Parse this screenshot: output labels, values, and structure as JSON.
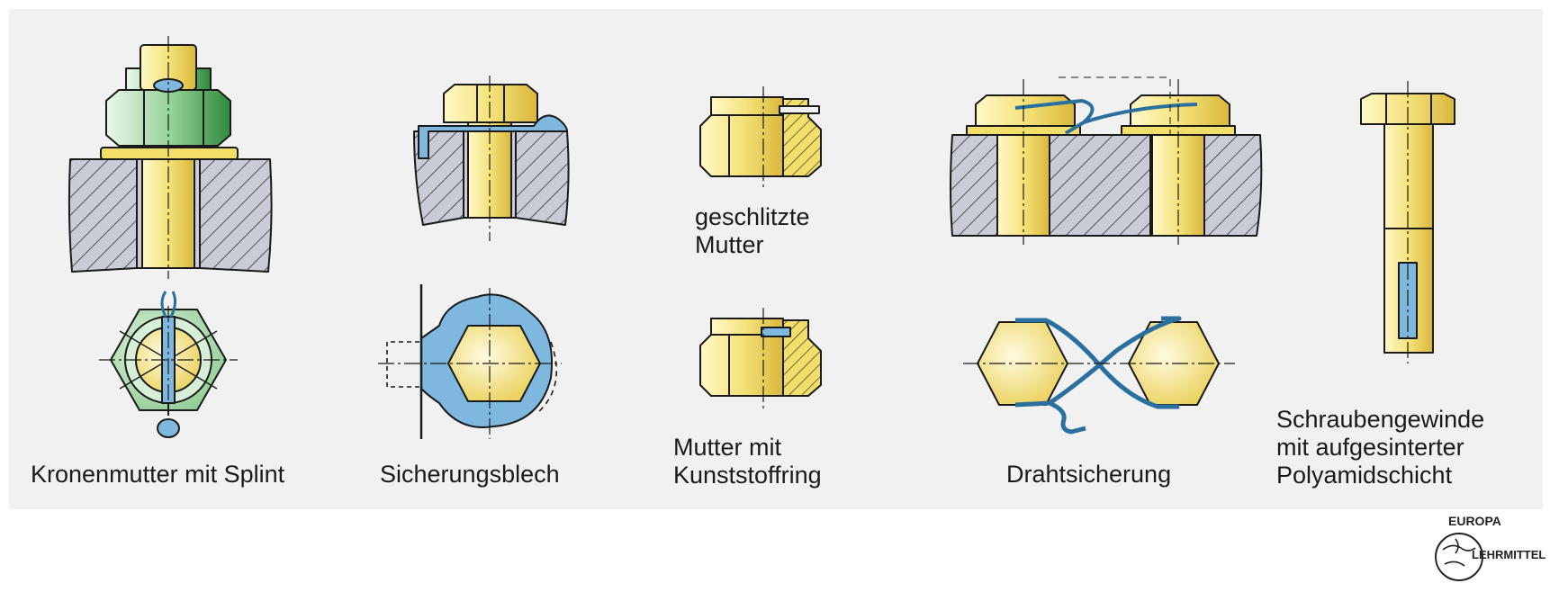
{
  "captions": {
    "kronenmutter": "Kronenmutter mit Splint",
    "sicherungsblech": "Sicherungsblech",
    "geschlitzte": "geschlitzte\nMutter",
    "kunststoffring": "Mutter mit\nKunststoffring",
    "drahtsicherung": "Drahtsicherung",
    "schraubengewinde": "Schraubengewinde\nmit aufgesinterter\nPolyamidschicht"
  },
  "logo": {
    "word1": "EUROPA",
    "word2": "LEHRMITTEL"
  },
  "colors": {
    "panel": "#f1f1f1",
    "brass": "#f2df6a",
    "brass_light": "#fff8c8",
    "green": "#3f9a4a",
    "green_light": "#d6efd6",
    "blue": "#7fb8df",
    "steel": "#c9ccd6",
    "outline": "#1a1a1a"
  }
}
